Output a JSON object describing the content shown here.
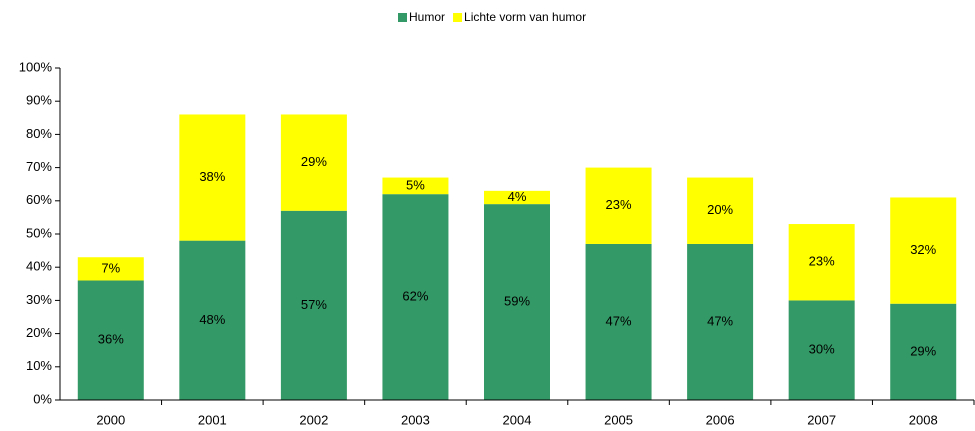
{
  "chart_data": {
    "type": "stacked_bar",
    "categories": [
      "2000",
      "2001",
      "2002",
      "2003",
      "2004",
      "2005",
      "2006",
      "2007",
      "2008"
    ],
    "series": [
      {
        "name": "Humor",
        "color": "#339966",
        "values": [
          36,
          48,
          57,
          62,
          59,
          47,
          47,
          30,
          29
        ],
        "value_labels": [
          "36%",
          "48%",
          "57%",
          "62%",
          "59%",
          "47%",
          "47%",
          "30%",
          "29%"
        ]
      },
      {
        "name": "Lichte vorm van humor",
        "color": "#ffff00",
        "values": [
          7,
          38,
          29,
          5,
          4,
          23,
          20,
          23,
          32
        ],
        "value_labels": [
          "7%",
          "38%",
          "29%",
          "5%",
          "4%",
          "23%",
          "20%",
          "23%",
          "32%"
        ]
      }
    ],
    "ylim": [
      0,
      100
    ],
    "yticks": [
      {
        "value": 0,
        "label": "0%"
      },
      {
        "value": 10,
        "label": "10%"
      },
      {
        "value": 20,
        "label": "20%"
      },
      {
        "value": 30,
        "label": "30%"
      },
      {
        "value": 40,
        "label": "40%"
      },
      {
        "value": 50,
        "label": "50%"
      },
      {
        "value": 60,
        "label": "60%"
      },
      {
        "value": 70,
        "label": "70%"
      },
      {
        "value": 80,
        "label": "80%"
      },
      {
        "value": 90,
        "label": "90%"
      },
      {
        "value": 100,
        "label": "100%"
      }
    ],
    "legend": "top"
  }
}
